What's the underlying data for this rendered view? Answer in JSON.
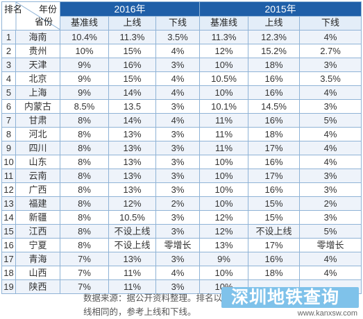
{
  "header": {
    "rank_label": "排名",
    "year_label": "年份",
    "province_label": "省份",
    "years": [
      "2016年",
      "2015年"
    ],
    "columns_2016": [
      "基准线",
      "上线",
      "下线"
    ],
    "columns_2015": [
      "基准线",
      "上线",
      "下线"
    ]
  },
  "rows": [
    {
      "rank": "1",
      "province": "海南",
      "y2016_base": "10.4%",
      "y2016_upper": "11.3%",
      "y2016_lower": "3.5%",
      "y2015_base": "11.3%",
      "y2015_upper": "12.3%",
      "y2015_lower": "4%"
    },
    {
      "rank": "2",
      "province": "贵州",
      "y2016_base": "10%",
      "y2016_upper": "15%",
      "y2016_lower": "4%",
      "y2015_base": "12%",
      "y2015_upper": "15.2%",
      "y2015_lower": "2.7%"
    },
    {
      "rank": "3",
      "province": "天津",
      "y2016_base": "9%",
      "y2016_upper": "16%",
      "y2016_lower": "3%",
      "y2015_base": "10%",
      "y2015_upper": "18%",
      "y2015_lower": "3%"
    },
    {
      "rank": "4",
      "province": "北京",
      "y2016_base": "9%",
      "y2016_upper": "15%",
      "y2016_lower": "4%",
      "y2015_base": "10.5%",
      "y2015_upper": "16%",
      "y2015_lower": "3.5%"
    },
    {
      "rank": "5",
      "province": "上海",
      "y2016_base": "9%",
      "y2016_upper": "14%",
      "y2016_lower": "4%",
      "y2015_base": "10%",
      "y2015_upper": "16%",
      "y2015_lower": "4%"
    },
    {
      "rank": "6",
      "province": "内蒙古",
      "y2016_base": "8.5%",
      "y2016_upper": "13.5",
      "y2016_lower": "3%",
      "y2015_base": "10.1%",
      "y2015_upper": "14.5%",
      "y2015_lower": "3%"
    },
    {
      "rank": "7",
      "province": "甘肃",
      "y2016_base": "8%",
      "y2016_upper": "14%",
      "y2016_lower": "4%",
      "y2015_base": "11%",
      "y2015_upper": "16%",
      "y2015_lower": "5%"
    },
    {
      "rank": "8",
      "province": "河北",
      "y2016_base": "8%",
      "y2016_upper": "13%",
      "y2016_lower": "3%",
      "y2015_base": "11%",
      "y2015_upper": "18%",
      "y2015_lower": "4%"
    },
    {
      "rank": "9",
      "province": "四川",
      "y2016_base": "8%",
      "y2016_upper": "13%",
      "y2016_lower": "3%",
      "y2015_base": "11%",
      "y2015_upper": "17%",
      "y2015_lower": "4%"
    },
    {
      "rank": "10",
      "province": "山东",
      "y2016_base": "8%",
      "y2016_upper": "13%",
      "y2016_lower": "3%",
      "y2015_base": "10%",
      "y2015_upper": "16%",
      "y2015_lower": "4%"
    },
    {
      "rank": "11",
      "province": "云南",
      "y2016_base": "8%",
      "y2016_upper": "13%",
      "y2016_lower": "3%",
      "y2015_base": "10%",
      "y2015_upper": "17%",
      "y2015_lower": "3%"
    },
    {
      "rank": "12",
      "province": "广西",
      "y2016_base": "8%",
      "y2016_upper": "13%",
      "y2016_lower": "3%",
      "y2015_base": "10%",
      "y2015_upper": "16%",
      "y2015_lower": "3%"
    },
    {
      "rank": "13",
      "province": "福建",
      "y2016_base": "8%",
      "y2016_upper": "12%",
      "y2016_lower": "2%",
      "y2015_base": "10%",
      "y2015_upper": "15%",
      "y2015_lower": "2%"
    },
    {
      "rank": "14",
      "province": "新疆",
      "y2016_base": "8%",
      "y2016_upper": "10.5%",
      "y2016_lower": "3%",
      "y2015_base": "12%",
      "y2015_upper": "15%",
      "y2015_lower": "3%"
    },
    {
      "rank": "15",
      "province": "江西",
      "y2016_base": "8%",
      "y2016_upper": "不设上线",
      "y2016_lower": "3%",
      "y2015_base": "12%",
      "y2015_upper": "不设上线",
      "y2015_lower": "5%"
    },
    {
      "rank": "16",
      "province": "宁夏",
      "y2016_base": "8%",
      "y2016_upper": "不设上线",
      "y2016_lower": "零增长",
      "y2015_base": "13%",
      "y2015_upper": "17%",
      "y2015_lower": "零增长"
    },
    {
      "rank": "17",
      "province": "青海",
      "y2016_base": "7%",
      "y2016_upper": "13%",
      "y2016_lower": "3%",
      "y2015_base": "9%",
      "y2015_upper": "16%",
      "y2015_lower": "4%"
    },
    {
      "rank": "18",
      "province": "山西",
      "y2016_base": "7%",
      "y2016_upper": "11%",
      "y2016_lower": "4%",
      "y2015_base": "10%",
      "y2015_upper": "18%",
      "y2015_lower": "4%"
    },
    {
      "rank": "19",
      "province": "陕西",
      "y2016_base": "7%",
      "y2016_upper": "11%",
      "y2016_lower": "3%",
      "y2015_base": "10%",
      "y2015_upper": "",
      "y2015_lower": ""
    }
  ],
  "footnote": {
    "line1": "数据来源：据公开资料整理。排名以201",
    "line2": "线相同的，参考上线和下线。"
  },
  "watermark": {
    "logo_text": "深圳地铁查询",
    "url": "www.kanxsw.com"
  },
  "colors": {
    "header_bg": "#1f5fa8",
    "subheader_bg": "#e3edf8",
    "row_alt_bg": "#eef3fa",
    "border": "#8fb3d6",
    "watermark_bg": "#7fc2ea"
  }
}
